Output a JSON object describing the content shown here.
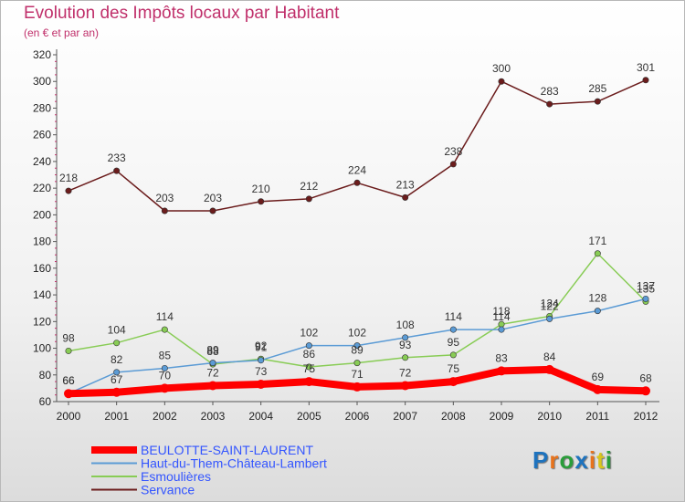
{
  "header": {
    "title": "Evolution des Impôts locaux par Habitant",
    "subtitle": "(en € et par an)"
  },
  "logo": {
    "text": "Proxiti",
    "colors": [
      "#1e73be",
      "#e8731c",
      "#2a9d3a",
      "#1e73be",
      "#e8731c",
      "#d8c51e",
      "#2a9d3a"
    ]
  },
  "chart_data": {
    "type": "line",
    "categories": [
      "2000",
      "2001",
      "2002",
      "2003",
      "2004",
      "2005",
      "2006",
      "2007",
      "2008",
      "2009",
      "2010",
      "2011",
      "2012"
    ],
    "ylim": [
      60,
      320
    ],
    "yticks": [
      60,
      80,
      100,
      120,
      140,
      160,
      180,
      200,
      220,
      240,
      260,
      280,
      300,
      320
    ],
    "grid": false,
    "legend": "bottom-left",
    "series": [
      {
        "name": "BEULOTTE-SAINT-LAURENT",
        "color": "#ff0000",
        "values": [
          66,
          67,
          70,
          72,
          73,
          75,
          71,
          72,
          75,
          83,
          84,
          69,
          68
        ],
        "labeled": true
      },
      {
        "name": "Haut-du-Them-Château-Lambert",
        "color": "#5b9bd5",
        "values": [
          66,
          82,
          85,
          89,
          91,
          102,
          102,
          108,
          114,
          114,
          122,
          128,
          137
        ],
        "labeled": true
      },
      {
        "name": "Esmoulières",
        "color": "#88cc55",
        "values": [
          98,
          104,
          114,
          88,
          92,
          86,
          89,
          93,
          95,
          118,
          124,
          171,
          135
        ],
        "labeled": true
      },
      {
        "name": "Servance",
        "color": "#6b1c1c",
        "values": [
          218,
          233,
          203,
          203,
          210,
          212,
          224,
          213,
          238,
          300,
          283,
          285,
          301
        ],
        "labeled": true
      }
    ]
  }
}
